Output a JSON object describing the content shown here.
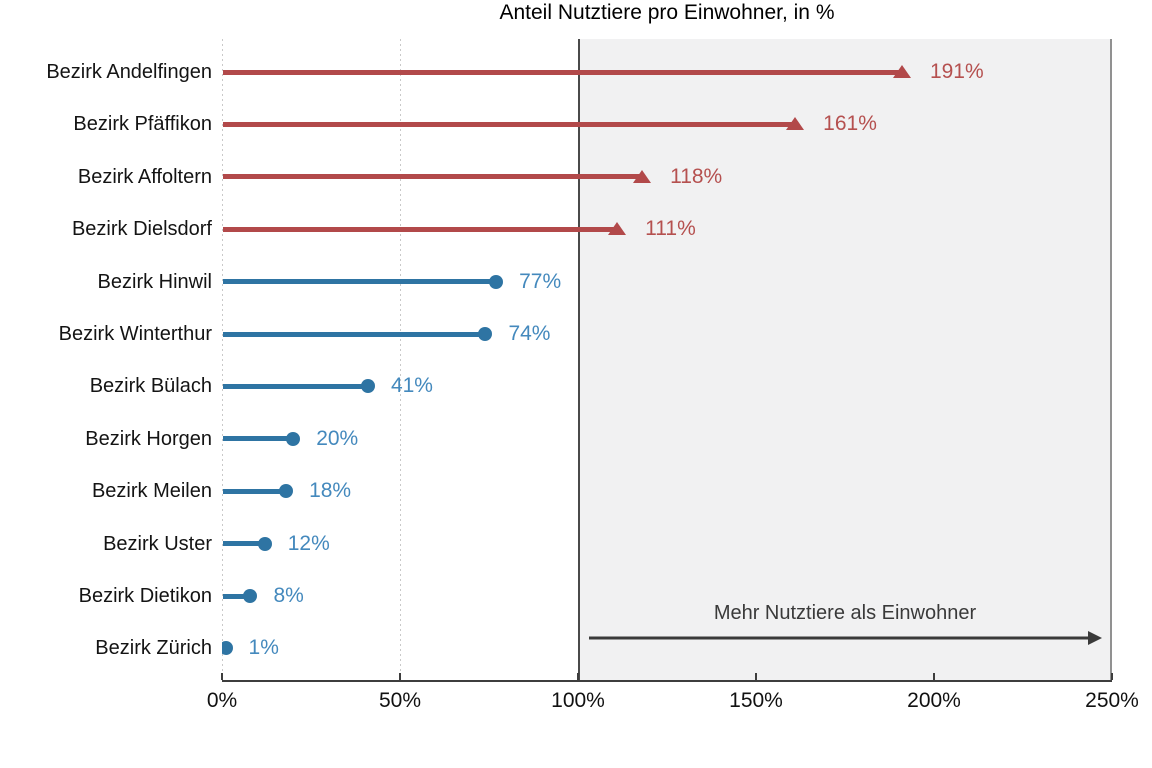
{
  "chart_data": {
    "type": "bar",
    "subtype": "horizontal-lollipop",
    "title": "",
    "xlabel": "Anteil Nutztiere pro Einwohner, in %",
    "ylabel": "",
    "xlim": [
      0,
      250
    ],
    "grid": "dotted-vertical",
    "x_ticks": [
      {
        "value": 0,
        "label": "0%",
        "grid": true
      },
      {
        "value": 50,
        "label": "50%",
        "grid": true
      },
      {
        "value": 100,
        "label": "100%",
        "grid": false
      },
      {
        "value": 150,
        "label": "150%",
        "grid": false
      },
      {
        "value": 200,
        "label": "200%",
        "grid": false
      },
      {
        "value": 250,
        "label": "250%",
        "grid": false
      }
    ],
    "rows": [
      {
        "label": "Bezirk Andelfingen",
        "value": 191,
        "display": "191%",
        "group": "over100"
      },
      {
        "label": "Bezirk Pfäffikon",
        "value": 161,
        "display": "161%",
        "group": "over100"
      },
      {
        "label": "Bezirk Affoltern",
        "value": 118,
        "display": "118%",
        "group": "over100"
      },
      {
        "label": "Bezirk Dielsdorf",
        "value": 111,
        "display": "111%",
        "group": "over100"
      },
      {
        "label": "Bezirk Hinwil",
        "value": 77,
        "display": "77%",
        "group": "under100"
      },
      {
        "label": "Bezirk Winterthur",
        "value": 74,
        "display": "74%",
        "group": "under100"
      },
      {
        "label": "Bezirk Bülach",
        "value": 41,
        "display": "41%",
        "group": "under100"
      },
      {
        "label": "Bezirk Horgen",
        "value": 20,
        "display": "20%",
        "group": "under100"
      },
      {
        "label": "Bezirk Meilen",
        "value": 18,
        "display": "18%",
        "group": "under100"
      },
      {
        "label": "Bezirk Uster",
        "value": 12,
        "display": "12%",
        "group": "under100"
      },
      {
        "label": "Bezirk Dietikon",
        "value": 8,
        "display": "8%",
        "group": "under100"
      },
      {
        "label": "Bezirk Zürich",
        "value": 1,
        "display": "1%",
        "group": "under100"
      }
    ],
    "shaded_region": {
      "from": 100,
      "to": 250
    },
    "annotation": {
      "text": "Mehr Nutztiere als Einwohner",
      "arrow_from_pct": 103,
      "arrow_to_pct": 247
    }
  },
  "colors": {
    "background": "#ffffff",
    "over100_line": "#b2494a",
    "over100_text": "#b5504f",
    "under100_line": "#2e74a3",
    "under100_text": "#4489bd",
    "axis": "#3d3d3d",
    "grid_dot": "#c9c9c9",
    "shade_fill": "#f1f1f2",
    "shade_left_border": "#4a4a4a",
    "shade_right_border": "#919191",
    "row_label": "#141414",
    "tick_label": "#111111",
    "axis_title": "#111111",
    "annotation_text": "#3a3a3a"
  }
}
